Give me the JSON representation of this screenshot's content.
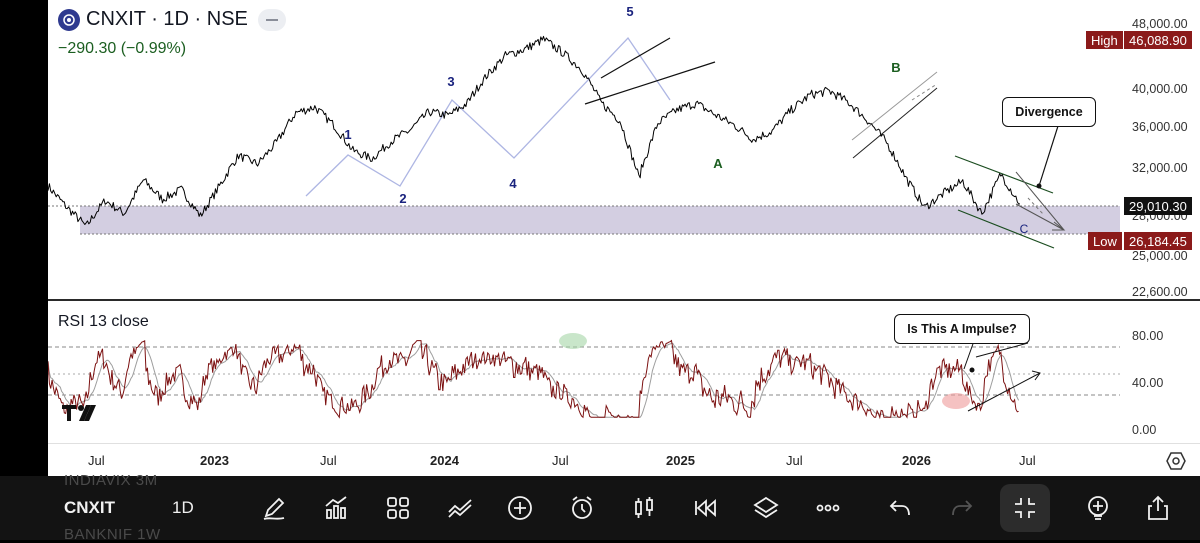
{
  "symbol": {
    "title": "CNXIT · 1D · NSE",
    "change": "−290.30 (−0.99%)"
  },
  "price_axis": {
    "labels": [
      "48,000.00",
      "40,000.00",
      "36,000.00",
      "32,000.00",
      "28,000.00",
      "25,000.00",
      "22,600.00"
    ]
  },
  "price_tags": {
    "high_label": "High",
    "high_value": "46,088.90",
    "last_value": "29,010.30",
    "low_label": "Low",
    "low_value": "26,184.45"
  },
  "wave_labels": [
    "1",
    "2",
    "3",
    "4",
    "5",
    "A",
    "B",
    "C"
  ],
  "annotations": {
    "divergence": "Divergence",
    "impulse": "Is This A Impulse?"
  },
  "rsi": {
    "title": "RSI 13 close",
    "axis_labels": [
      "80.00",
      "40.00",
      "0.00"
    ]
  },
  "time_axis": {
    "labels": [
      "Jul",
      "2023",
      "Jul",
      "2024",
      "Jul",
      "2025",
      "Jul",
      "2026",
      "Jul"
    ]
  },
  "toolbar": {
    "symbol": "CNXIT",
    "interval": "1D",
    "prev_symbol": "INDIAVIX  3M",
    "next_symbol": "BANKNIF  1W",
    "icons": [
      "draw-icon",
      "indicators-icon",
      "layout-icon",
      "compare-icon",
      "add-icon",
      "alert-icon",
      "chart-type-icon",
      "replay-icon",
      "layers-icon",
      "more-icon",
      "undo-icon",
      "redo-icon",
      "fullscreen-icon",
      "zoom-icon",
      "share-icon"
    ]
  },
  "colors": {
    "price_line": "#000000",
    "rsi_line": "#7b1010",
    "rsi_ma": "#9e9e9e",
    "high_low_tag": "#8b1a1a",
    "wave_blue": "#1a237e",
    "wave_green": "#1b5e20",
    "zone_fill": "#cbc6dc"
  },
  "chart_data": {
    "type": "line",
    "price_range": [
      22600,
      48000
    ],
    "series": [
      {
        "values": [
          30500,
          28700,
          27200,
          29300,
          28200,
          31000,
          29400,
          30200,
          28000,
          30500,
          33200,
          32400,
          34500,
          37500,
          38100,
          36200,
          33700,
          32900,
          34600,
          35700,
          37600,
          37200,
          38500,
          41600,
          44100,
          44900,
          46100,
          44500,
          42400,
          38600,
          36700,
          31200,
          36400,
          37800,
          38500,
          37300,
          36200,
          34800,
          35600,
          37800,
          39400,
          39800,
          38600,
          36700,
          34500,
          31200,
          28700,
          29900,
          30900,
          28200,
          31500,
          29010
        ]
      }
    ],
    "rsi": {
      "range": [
        0,
        100
      ],
      "levels": [
        70,
        50,
        30
      ]
    }
  }
}
